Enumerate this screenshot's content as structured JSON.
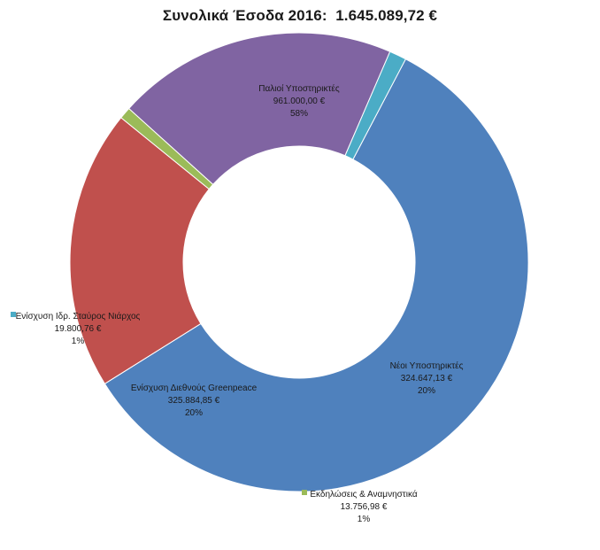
{
  "chart_data": {
    "type": "pie",
    "style": "donut",
    "title": "Συνολικά Έσοδα 2016:  1.645.089,72 €",
    "slices": [
      {
        "label": "Παλιοί Υποστηρικτές",
        "value": 961000.0,
        "value_text": "961.000,00 €",
        "percent_text": "58%",
        "color": "#4F81BD"
      },
      {
        "label": "Νέοι Υποστηρικτές",
        "value": 324647.13,
        "value_text": "324.647,13 €",
        "percent_text": "20%",
        "color": "#C0504D"
      },
      {
        "label": "Εκδηλώσεις & Αναμνηστικά",
        "value": 13756.98,
        "value_text": "13.756,98 €",
        "percent_text": "1%",
        "color": "#9BBB59"
      },
      {
        "label": "Ενίσχυση Διεθνούς Greenpeace",
        "value": 325884.85,
        "value_text": "325.884,85 €",
        "percent_text": "20%",
        "color": "#8064A2"
      },
      {
        "label": "Ενίσχυση Ιδρ. Σταύρος Νιάρχος",
        "value": 19800.76,
        "value_text": "19.800,76 €",
        "percent_text": "1%",
        "color": "#4BACC6"
      }
    ]
  }
}
